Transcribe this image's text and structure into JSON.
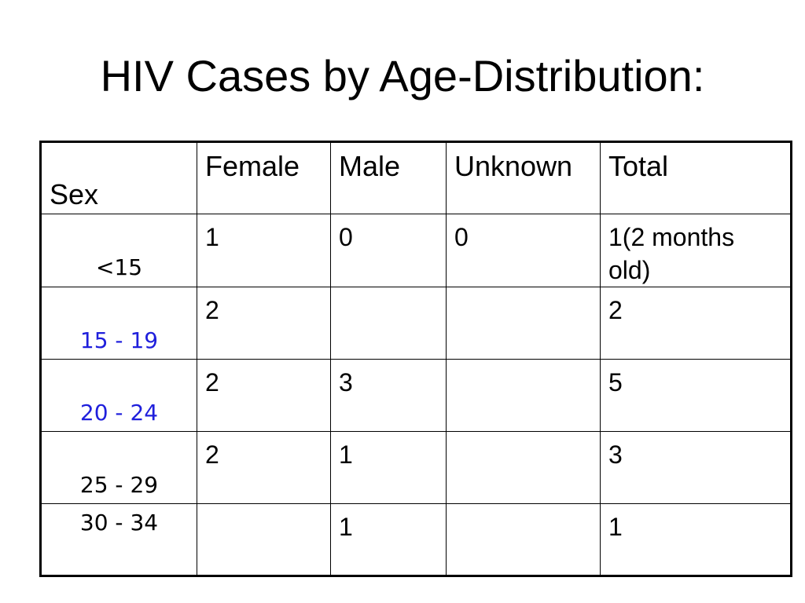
{
  "title": "HIV Cases by Age-Distribution:",
  "table": {
    "corner_label": "Sex",
    "headers": [
      "Female",
      "Male",
      "Unknown",
      "Total"
    ],
    "rows": [
      {
        "age": "<15",
        "female": "1",
        "male": "0",
        "unknown": "0",
        "total": "1(2 months old)",
        "age_color": "#000000"
      },
      {
        "age": "15 - 19",
        "female": "2",
        "male": "",
        "unknown": "",
        "total": "2",
        "age_color": "#1f1fdc"
      },
      {
        "age": "20 - 24",
        "female": "2",
        "male": "3",
        "unknown": "",
        "total": "5",
        "age_color": "#1f1fdc"
      },
      {
        "age": "25 - 29",
        "female": "2",
        "male": "1",
        "unknown": "",
        "total": "3",
        "age_color": "#000000"
      },
      {
        "age": "30 - 34",
        "female": "",
        "male": "1",
        "unknown": "",
        "total": "1",
        "age_color": "#000000"
      }
    ]
  }
}
